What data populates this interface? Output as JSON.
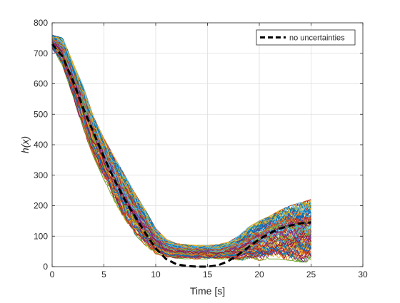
{
  "chart_data": {
    "type": "line",
    "xlabel": "Time [s]",
    "ylabel": "h(x)",
    "xlim": [
      0,
      30
    ],
    "ylim": [
      0,
      800
    ],
    "xticks": [
      0,
      5,
      10,
      15,
      20,
      25,
      30
    ],
    "yticks": [
      0,
      100,
      200,
      300,
      400,
      500,
      600,
      700,
      800
    ],
    "xtick_labels": [
      "0",
      "5",
      "10",
      "15",
      "20",
      "25",
      "30"
    ],
    "ytick_labels": [
      "0",
      "100",
      "200",
      "300",
      "400",
      "500",
      "600",
      "700",
      "800"
    ],
    "grid": true,
    "legend": {
      "location": "top-right",
      "entries": [
        "no uncertainties"
      ]
    },
    "reference_series": {
      "name": "no uncertainties",
      "style": "dashed",
      "color": "#000000",
      "x": [
        0,
        1,
        2,
        3,
        4,
        5,
        6,
        7,
        8,
        9,
        10,
        11,
        12,
        13,
        14,
        15,
        16,
        17,
        18,
        19,
        20,
        21,
        22,
        23,
        24,
        25
      ],
      "y": [
        730,
        690,
        610,
        520,
        440,
        360,
        285,
        220,
        165,
        110,
        60,
        25,
        8,
        2,
        0,
        0,
        4,
        18,
        40,
        65,
        90,
        110,
        125,
        135,
        142,
        145
      ]
    },
    "ensemble": {
      "count": 100,
      "x_range": [
        0,
        25
      ],
      "envelope": {
        "x": [
          0,
          1,
          2,
          3,
          4,
          5,
          6,
          7,
          8,
          9,
          10,
          11,
          12,
          13,
          14,
          15,
          16,
          17,
          18,
          19,
          20,
          21,
          22,
          23,
          24,
          25
        ],
        "low": [
          715,
          660,
          560,
          450,
          360,
          285,
          215,
          155,
          105,
          70,
          42,
          32,
          28,
          25,
          25,
          25,
          25,
          25,
          20,
          20,
          20,
          25,
          25,
          20,
          15,
          15
        ],
        "high": [
          760,
          750,
          670,
          590,
          490,
          420,
          360,
          300,
          240,
          185,
          125,
          90,
          75,
          72,
          70,
          70,
          72,
          80,
          100,
          130,
          150,
          165,
          185,
          200,
          210,
          220
        ]
      },
      "colors": [
        "#0072BD",
        "#D95319",
        "#EDB120",
        "#7E2F8E",
        "#77AC30",
        "#4DBEEE",
        "#A2142F"
      ]
    }
  }
}
